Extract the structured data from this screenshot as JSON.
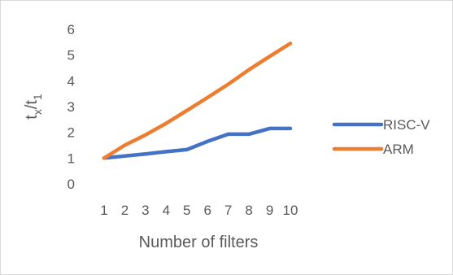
{
  "chart_data": {
    "type": "line",
    "title": "",
    "xlabel": "Number of filters",
    "ylabel": {
      "main": "t",
      "sub1": "x",
      "slash": "/t",
      "sub2": "1"
    },
    "x": [
      1,
      2,
      3,
      4,
      5,
      6,
      7,
      8,
      9,
      10
    ],
    "ylim": [
      0,
      6
    ],
    "yticks": [
      0,
      1,
      2,
      3,
      4,
      5,
      6
    ],
    "grid": false,
    "legend_position": "right",
    "series": [
      {
        "name": "RISC-V",
        "color": "#4472c4",
        "values": [
          1.0,
          1.08,
          1.16,
          1.25,
          1.33,
          1.65,
          1.93,
          1.93,
          2.15,
          2.15
        ]
      },
      {
        "name": "ARM",
        "color": "#ed7d31",
        "values": [
          1.0,
          1.5,
          1.9,
          2.35,
          2.85,
          3.35,
          3.87,
          4.43,
          4.95,
          5.45
        ]
      }
    ]
  }
}
